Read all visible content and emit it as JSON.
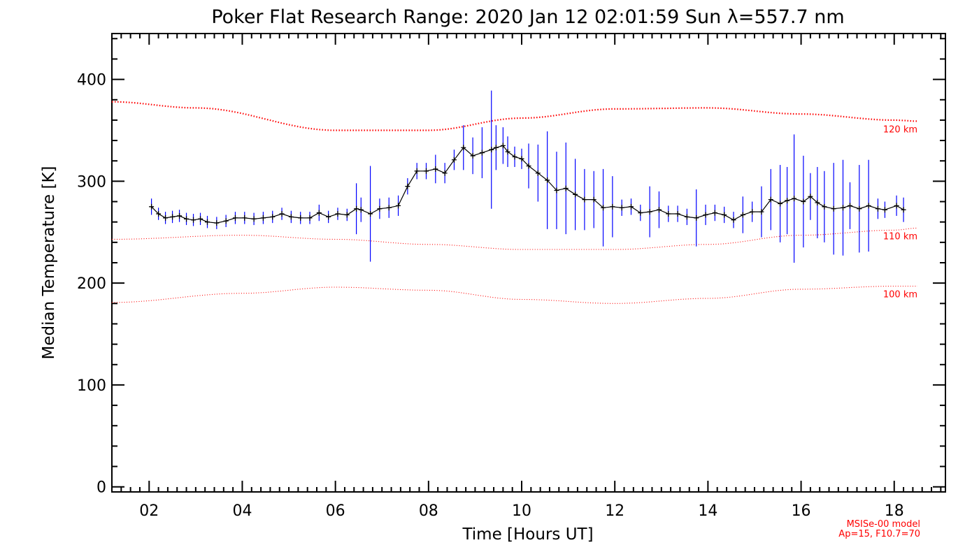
{
  "chart_data": {
    "type": "line",
    "title": "Poker Flat Research Range: 2020 Jan 12 02:01:59 Sun λ=557.7 nm",
    "xlabel": "Time [Hours UT]",
    "ylabel": "Median Temperature [K]",
    "xlim": [
      1.2,
      19.1
    ],
    "ylim": [
      -5,
      445
    ],
    "x_ticks": [
      2,
      4,
      6,
      8,
      10,
      12,
      14,
      16,
      18
    ],
    "x_tick_labels": [
      "02",
      "04",
      "06",
      "08",
      "10",
      "12",
      "14",
      "16",
      "18"
    ],
    "y_ticks": [
      0,
      100,
      200,
      300,
      400
    ],
    "y_tick_labels": [
      "0",
      "100",
      "200",
      "300",
      "400"
    ],
    "grid": false,
    "colors": {
      "data": "#000000",
      "error_bars": "#0000ff",
      "model": "#ff0000"
    },
    "series": [
      {
        "x": [
          2.05,
          2.2,
          2.35,
          2.5,
          2.65,
          2.8,
          2.95,
          3.1,
          3.25,
          3.45,
          3.65,
          3.85,
          4.05,
          4.25,
          4.45,
          4.65,
          4.85,
          5.05,
          5.25,
          5.45,
          5.65,
          5.85,
          6.05,
          6.25,
          6.45,
          6.55,
          6.75,
          6.95,
          7.15,
          7.35,
          7.55,
          7.75,
          7.95,
          8.15,
          8.35,
          8.55,
          8.75,
          8.95,
          9.15,
          9.35,
          9.45,
          9.6,
          9.7,
          9.85,
          10.0,
          10.15,
          10.35,
          10.55,
          10.75,
          10.95,
          11.15,
          11.35,
          11.55,
          11.75,
          11.95,
          12.15,
          12.35,
          12.55,
          12.75,
          12.95,
          13.15,
          13.35,
          13.55,
          13.75,
          13.95,
          14.15,
          14.35,
          14.55,
          14.75,
          14.95,
          15.15,
          15.35,
          15.55,
          15.7,
          15.85,
          16.05,
          16.2,
          16.35,
          16.5,
          16.7,
          16.9,
          17.05,
          17.25,
          17.45,
          17.65,
          17.8,
          18.05,
          18.2
        ],
        "y": [
          275,
          268,
          264,
          265,
          266,
          263,
          262,
          263,
          260,
          259,
          261,
          264,
          264,
          263,
          264,
          265,
          268,
          265,
          264,
          264,
          269,
          265,
          268,
          267,
          273,
          272,
          268,
          273,
          274,
          276,
          295,
          310,
          310,
          312,
          308,
          321,
          333,
          325,
          328,
          331,
          333,
          335,
          329,
          324,
          322,
          315,
          308,
          301,
          291,
          293,
          287,
          282,
          282,
          274,
          275,
          274,
          275,
          269,
          270,
          272,
          268,
          268,
          265,
          264,
          267,
          269,
          267,
          262,
          267,
          270,
          270,
          282,
          278,
          281,
          283,
          280,
          285,
          279,
          275,
          273,
          274,
          276,
          273,
          276,
          273,
          272,
          276,
          272
        ],
        "err": [
          8,
          6,
          6,
          6,
          6,
          6,
          6,
          6,
          6,
          6,
          6,
          6,
          6,
          6,
          6,
          6,
          6,
          6,
          6,
          6,
          8,
          6,
          6,
          6,
          25,
          12,
          47,
          10,
          10,
          10,
          8,
          8,
          8,
          14,
          10,
          10,
          22,
          18,
          25,
          58,
          22,
          18,
          15,
          10,
          10,
          22,
          28,
          48,
          38,
          45,
          35,
          30,
          28,
          38,
          30,
          8,
          8,
          8,
          25,
          18,
          8,
          8,
          8,
          28,
          10,
          8,
          8,
          8,
          18,
          10,
          25,
          30,
          38,
          33,
          63,
          45,
          23,
          35,
          35,
          45,
          47,
          23,
          43,
          45,
          10,
          8,
          10,
          12
        ]
      }
    ],
    "model_curves": [
      {
        "label": "120 km",
        "x": [
          1.2,
          3.0,
          6.0,
          8.0,
          10.0,
          12.0,
          14.0,
          16.0,
          18.0,
          18.5
        ],
        "y": [
          378,
          372,
          350,
          350,
          362,
          371,
          372,
          366,
          360,
          359
        ]
      },
      {
        "label": "110 km",
        "x": [
          1.2,
          4.0,
          6.0,
          8.0,
          10.0,
          12.0,
          14.0,
          16.0,
          18.0,
          18.5
        ],
        "y": [
          243,
          247,
          243,
          238,
          233,
          233,
          238,
          247,
          252,
          254
        ]
      },
      {
        "label": "100 km",
        "x": [
          1.2,
          4.0,
          6.0,
          8.0,
          10.0,
          12.0,
          14.0,
          16.0,
          18.0,
          18.5
        ],
        "y": [
          181,
          190,
          196,
          193,
          184,
          180,
          185,
          194,
          197,
          197
        ]
      }
    ],
    "annotations": [
      "MSISe-00 model",
      "Ap=15, F10.7=70"
    ]
  }
}
